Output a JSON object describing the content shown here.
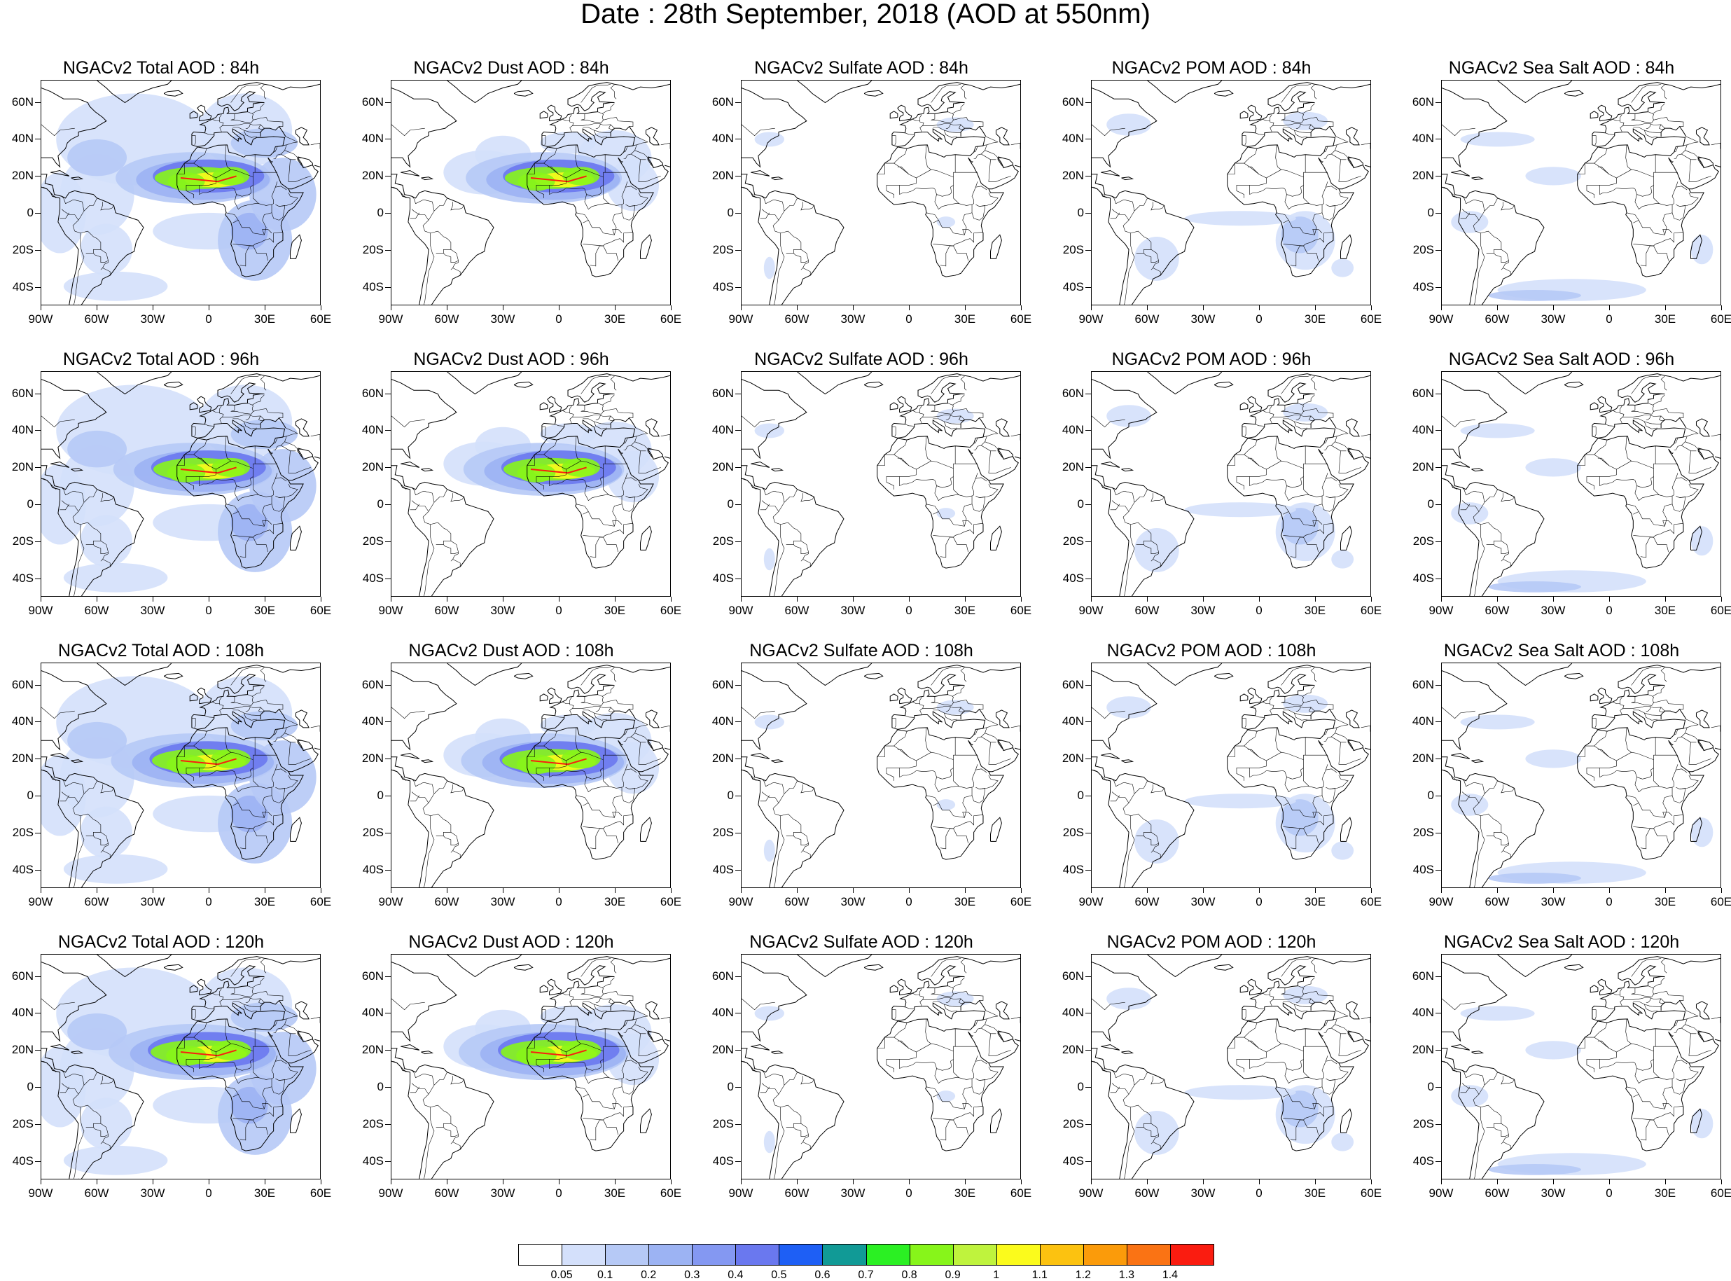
{
  "title": "Date : 28th September, 2018 (AOD at 550nm)",
  "lat_labels": [
    "60N",
    "40N",
    "20N",
    "0",
    "20S",
    "40S"
  ],
  "lon_labels": [
    "90W",
    "60W",
    "30W",
    "0",
    "30E",
    "60E"
  ],
  "panels": [
    [
      "NGACv2 Total AOD : 84h",
      "NGACv2 Dust AOD : 84h",
      "NGACv2 Sulfate AOD : 84h",
      "NGACv2 POM AOD : 84h",
      "NGACv2 Sea Salt AOD : 84h"
    ],
    [
      "NGACv2 Total AOD : 96h",
      "NGACv2 Dust AOD : 96h",
      "NGACv2 Sulfate AOD : 96h",
      "NGACv2 POM AOD : 96h",
      "NGACv2 Sea Salt AOD : 96h"
    ],
    [
      "NGACv2 Total AOD : 108h",
      "NGACv2 Dust AOD : 108h",
      "NGACv2 Sulfate AOD : 108h",
      "NGACv2 POM AOD : 108h",
      "NGACv2 Sea Salt AOD : 108h"
    ],
    [
      "NGACv2 Total AOD : 120h",
      "NGACv2 Dust AOD : 120h",
      "NGACv2 Sulfate AOD : 120h",
      "NGACv2 POM AOD : 120h",
      "NGACv2 Sea Salt  AOD : 120h"
    ]
  ],
  "colorbar": {
    "labels": [
      "0.05",
      "0.1",
      "0.2",
      "0.3",
      "0.4",
      "0.5",
      "0.6",
      "0.7",
      "0.8",
      "0.9",
      "1",
      "1.1",
      "1.2",
      "1.3",
      "1.4"
    ],
    "colors": [
      "#ffffff",
      "#d4e0fb",
      "#b6c9f6",
      "#9cb3f3",
      "#8498f2",
      "#6a78ef",
      "#1e5ff5",
      "#119a96",
      "#2bf023",
      "#87f51a",
      "#bff33d",
      "#fbfb1c",
      "#fcc210",
      "#fb9b0a",
      "#fa7314",
      "#fa1c10"
    ]
  }
}
